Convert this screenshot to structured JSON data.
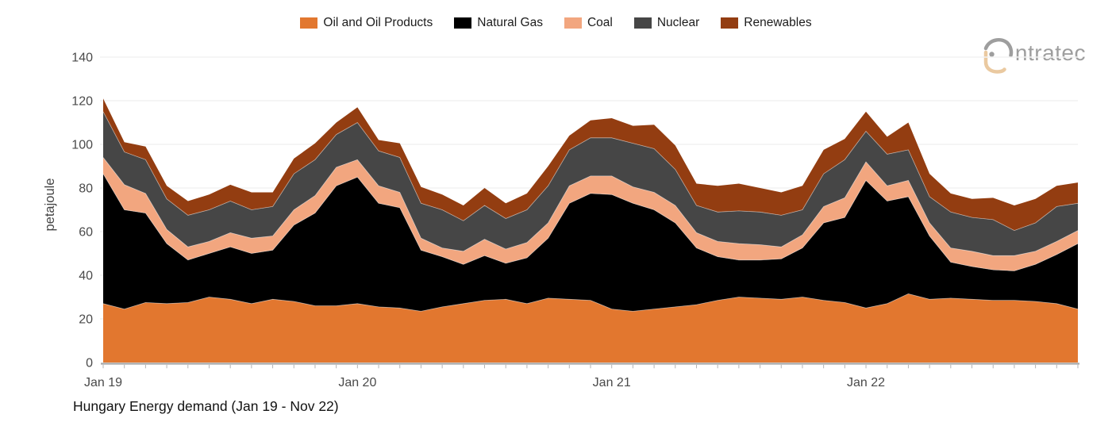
{
  "logo": {
    "brand": "intratec",
    "text": "ntratec",
    "gray": "#9e9e9e",
    "tan": "#eac9a0"
  },
  "axis": {
    "y_tick_labels": [
      "0",
      "20",
      "40",
      "60",
      "80",
      "100",
      "120",
      "140"
    ],
    "tick_color": "#4a4a4a",
    "axis_line_color": "#a7a7a7",
    "grid_color": "#f2f2f2"
  },
  "chart_data": {
    "type": "area",
    "stacked": true,
    "title": "Hungary Energy demand (Jan 19 - Nov 22)",
    "xlabel": "",
    "ylabel": "petajoule",
    "ylim": [
      0,
      140
    ],
    "ytick_step": 20,
    "grid": true,
    "legend_position": "top",
    "x_tick_labels": [
      "Jan 19",
      "Jan 20",
      "Jan 21",
      "Jan 22"
    ],
    "categories": [
      "Jan 19",
      "Feb 19",
      "Mar 19",
      "Apr 19",
      "May 19",
      "Jun 19",
      "Jul 19",
      "Aug 19",
      "Sep 19",
      "Oct 19",
      "Nov 19",
      "Dec 19",
      "Jan 20",
      "Feb 20",
      "Mar 20",
      "Apr 20",
      "May 20",
      "Jun 20",
      "Jul 20",
      "Aug 20",
      "Sep 20",
      "Oct 20",
      "Nov 20",
      "Dec 20",
      "Jan 21",
      "Feb 21",
      "Mar 21",
      "Apr 21",
      "May 21",
      "Jun 21",
      "Jul 21",
      "Aug 21",
      "Sep 21",
      "Oct 21",
      "Nov 21",
      "Dec 21",
      "Jan 22",
      "Feb 22",
      "Mar 22",
      "Apr 22",
      "May 22",
      "Jun 22",
      "Jul 22",
      "Aug 22",
      "Sep 22",
      "Oct 22",
      "Nov 22"
    ],
    "series": [
      {
        "name": "Oil and Oil Products",
        "color": "#e2772f",
        "values": [
          27,
          24.5,
          27.5,
          27,
          27.5,
          30,
          29,
          27,
          29,
          28,
          26,
          26,
          27,
          25.5,
          25,
          23.5,
          25.5,
          27,
          28.5,
          29,
          27,
          29.5,
          29,
          28.5,
          24.5,
          23.5,
          24.5,
          25.5,
          26.5,
          28.5,
          30,
          29.5,
          29,
          30,
          28.5,
          27.5,
          25,
          27,
          31.5,
          29,
          29.5,
          29,
          28.5,
          28.5,
          28,
          27,
          24.5
        ]
      },
      {
        "name": "Natural Gas",
        "color": "#000000",
        "values": [
          59.5,
          45.5,
          41,
          27.5,
          19.5,
          20,
          24,
          23,
          22.5,
          35,
          42.5,
          55,
          58,
          47.5,
          46,
          28,
          23,
          18,
          20.5,
          16.5,
          21,
          27.5,
          44,
          49,
          52.5,
          49.5,
          45.5,
          38.5,
          26,
          20,
          17,
          17.5,
          18.5,
          22.5,
          35.5,
          39,
          58.5,
          47,
          44.5,
          29,
          16.5,
          15,
          14,
          13.5,
          17,
          22.5,
          30
        ]
      },
      {
        "name": "Coal",
        "color": "#f2a67f",
        "values": [
          7.5,
          11.5,
          9,
          6.5,
          6,
          5.5,
          6.5,
          7,
          6.5,
          7,
          8,
          8.5,
          8,
          8,
          7,
          5.5,
          4,
          6,
          7.5,
          6.5,
          7,
          7,
          8,
          8,
          8.5,
          7.5,
          8,
          8,
          7,
          7,
          7.5,
          7,
          5.5,
          6,
          7.5,
          9,
          8.5,
          7,
          7.5,
          6,
          6.5,
          7,
          6.5,
          7,
          6,
          6,
          6
        ]
      },
      {
        "name": "Nuclear",
        "color": "#464646",
        "values": [
          21,
          15,
          15.5,
          14,
          14.5,
          14.5,
          14.5,
          13,
          13.5,
          16.5,
          16.5,
          15,
          17,
          16,
          16,
          16,
          17.5,
          14,
          15.5,
          14,
          15,
          17,
          16.5,
          17.5,
          17.5,
          20,
          20,
          16.5,
          12.5,
          13.5,
          15,
          15,
          14.5,
          11.5,
          15,
          17.5,
          14,
          14.5,
          14,
          12,
          16.5,
          15.5,
          16.5,
          11.5,
          13,
          16,
          12.5
        ]
      },
      {
        "name": "Renewables",
        "color": "#933d11",
        "values": [
          6,
          4.5,
          6,
          6,
          6.5,
          7,
          7.5,
          8,
          6.5,
          7,
          7.5,
          5.5,
          7,
          5,
          6.5,
          7.5,
          7,
          7,
          8,
          7,
          7.5,
          9,
          6.5,
          8,
          9,
          8,
          11,
          11,
          10,
          12,
          12.5,
          11,
          10.5,
          11,
          11,
          9.5,
          9,
          8,
          12.5,
          10.5,
          8.5,
          8.5,
          10,
          11.5,
          11,
          9.5,
          9.5
        ]
      }
    ]
  }
}
